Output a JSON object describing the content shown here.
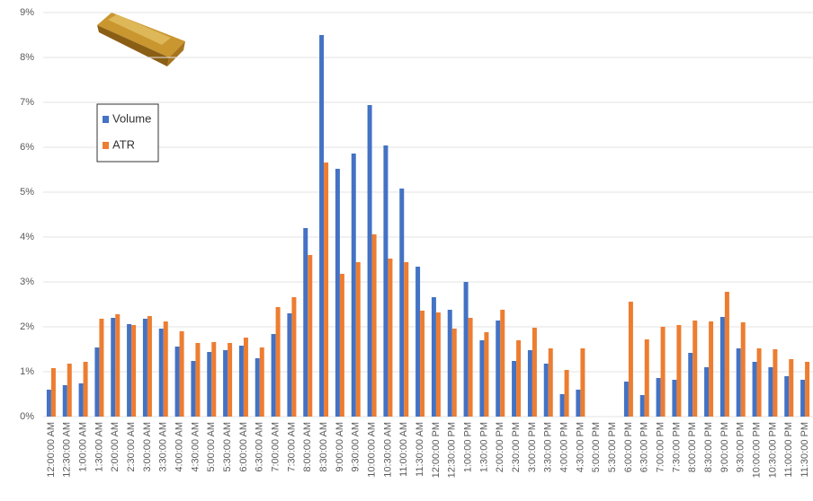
{
  "chart_data": {
    "type": "bar",
    "categories": [
      "12:00:00 AM",
      "12:30:00 AM",
      "1:00:00 AM",
      "1:30:00 AM",
      "2:00:00 AM",
      "2:30:00 AM",
      "3:00:00 AM",
      "3:30:00 AM",
      "4:00:00 AM",
      "4:30:00 AM",
      "5:00:00 AM",
      "5:30:00 AM",
      "6:00:00 AM",
      "6:30:00 AM",
      "7:00:00 AM",
      "7:30:00 AM",
      "8:00:00 AM",
      "8:30:00 AM",
      "9:00:00 AM",
      "9:30:00 AM",
      "10:00:00 AM",
      "10:30:00 AM",
      "11:00:00 AM",
      "11:30:00 AM",
      "12:00:00 PM",
      "12:30:00 PM",
      "1:00:00 PM",
      "1:30:00 PM",
      "2:00:00 PM",
      "2:30:00 PM",
      "3:00:00 PM",
      "3:30:00 PM",
      "4:00:00 PM",
      "4:30:00 PM",
      "5:00:00 PM",
      "5:30:00 PM",
      "6:00:00 PM",
      "6:30:00 PM",
      "7:00:00 PM",
      "7:30:00 PM",
      "8:00:00 PM",
      "8:30:00 PM",
      "9:00:00 PM",
      "9:30:00 PM",
      "10:00:00 PM",
      "10:30:00 PM",
      "11:00:00 PM",
      "11:30:00 PM"
    ],
    "series": [
      {
        "name": "Volume",
        "color": "#4472c4",
        "values": [
          0.6,
          0.7,
          0.74,
          1.54,
          2.2,
          2.06,
          2.18,
          1.96,
          1.56,
          1.24,
          1.44,
          1.48,
          1.58,
          1.3,
          1.84,
          2.3,
          4.2,
          8.5,
          5.52,
          5.86,
          6.94,
          6.04,
          5.08,
          3.34,
          2.66,
          2.38,
          3.0,
          1.7,
          2.14,
          1.24,
          1.48,
          1.18,
          0.5,
          0.6,
          0,
          0,
          0.78,
          0.48,
          0.86,
          0.82,
          1.42,
          1.1,
          2.22,
          1.52,
          1.22,
          1.1,
          0.9,
          0.82
        ]
      },
      {
        "name": "ATR",
        "color": "#ed7d31",
        "values": [
          1.08,
          1.18,
          1.22,
          2.18,
          2.28,
          2.04,
          2.24,
          2.12,
          1.9,
          1.64,
          1.66,
          1.64,
          1.76,
          1.54,
          2.44,
          2.66,
          3.6,
          5.66,
          3.18,
          3.44,
          4.06,
          3.52,
          3.44,
          2.36,
          2.32,
          1.96,
          2.2,
          1.88,
          2.38,
          1.7,
          1.98,
          1.52,
          1.04,
          1.52,
          0,
          0,
          2.56,
          1.72,
          2.0,
          2.04,
          2.14,
          2.12,
          2.78,
          2.1,
          1.52,
          1.5,
          1.28,
          1.22
        ]
      }
    ],
    "ylim": [
      0,
      9
    ],
    "yticks": [
      {
        "value": 0,
        "label": "0%"
      },
      {
        "value": 1,
        "label": "1%"
      },
      {
        "value": 2,
        "label": "2%"
      },
      {
        "value": 3,
        "label": "3%"
      },
      {
        "value": 4,
        "label": "4%"
      },
      {
        "value": 5,
        "label": "5%"
      },
      {
        "value": 6,
        "label": "6%"
      },
      {
        "value": 7,
        "label": "7%"
      },
      {
        "value": 8,
        "label": "8%"
      },
      {
        "value": 9,
        "label": "9%"
      }
    ],
    "grid": true,
    "legend": "upper-left"
  }
}
